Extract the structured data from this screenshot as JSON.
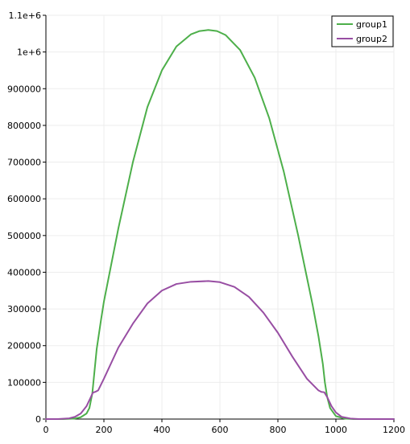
{
  "chart_data": {
    "type": "line",
    "title": "",
    "xlabel": "",
    "ylabel": "",
    "xlim": [
      0,
      1200
    ],
    "ylim": [
      0,
      1100000
    ],
    "xticks": [
      0,
      200,
      400,
      600,
      800,
      1000,
      1200
    ],
    "xtick_labels": [
      "0",
      "200",
      "400",
      "600",
      "800",
      "1000",
      "1200"
    ],
    "yticks": [
      0,
      100000,
      200000,
      300000,
      400000,
      500000,
      600000,
      700000,
      800000,
      900000,
      1000000,
      1100000
    ],
    "ytick_labels": [
      "0",
      "100000",
      "200000",
      "300000",
      "400000",
      "500000",
      "600000",
      "700000",
      "800000",
      "900000",
      "1e+6",
      "1.1e+6"
    ],
    "grid": true,
    "legend_position": "top-right",
    "series": [
      {
        "name": "group1",
        "color": "#4daf4a",
        "points": [
          [
            0,
            0
          ],
          [
            60,
            0
          ],
          [
            100,
            1500
          ],
          [
            120,
            5000
          ],
          [
            140,
            15000
          ],
          [
            150,
            30000
          ],
          [
            160,
            70000
          ],
          [
            165,
            110000
          ],
          [
            175,
            190000
          ],
          [
            190,
            270000
          ],
          [
            200,
            320000
          ],
          [
            250,
            520000
          ],
          [
            300,
            700000
          ],
          [
            350,
            850000
          ],
          [
            400,
            950000
          ],
          [
            450,
            1015000
          ],
          [
            500,
            1048000
          ],
          [
            530,
            1057000
          ],
          [
            560,
            1060000
          ],
          [
            590,
            1057000
          ],
          [
            620,
            1046000
          ],
          [
            670,
            1005000
          ],
          [
            720,
            930000
          ],
          [
            770,
            820000
          ],
          [
            820,
            675000
          ],
          [
            870,
            500000
          ],
          [
            920,
            310000
          ],
          [
            940,
            225000
          ],
          [
            955,
            150000
          ],
          [
            962,
            100000
          ],
          [
            970,
            60000
          ],
          [
            980,
            30000
          ],
          [
            1000,
            8000
          ],
          [
            1030,
            1500
          ],
          [
            1060,
            0
          ],
          [
            1200,
            0
          ]
        ]
      },
      {
        "name": "group2",
        "color": "#984ea3",
        "points": [
          [
            0,
            0
          ],
          [
            40,
            0
          ],
          [
            80,
            2000
          ],
          [
            100,
            6000
          ],
          [
            120,
            15000
          ],
          [
            140,
            35000
          ],
          [
            155,
            60000
          ],
          [
            162,
            72000
          ],
          [
            170,
            74000
          ],
          [
            180,
            78000
          ],
          [
            200,
            110000
          ],
          [
            250,
            195000
          ],
          [
            300,
            260000
          ],
          [
            350,
            315000
          ],
          [
            400,
            350000
          ],
          [
            450,
            368000
          ],
          [
            500,
            374000
          ],
          [
            560,
            376000
          ],
          [
            600,
            373000
          ],
          [
            650,
            360000
          ],
          [
            700,
            333000
          ],
          [
            750,
            290000
          ],
          [
            800,
            235000
          ],
          [
            850,
            170000
          ],
          [
            900,
            110000
          ],
          [
            940,
            78000
          ],
          [
            950,
            74000
          ],
          [
            960,
            73000
          ],
          [
            970,
            60000
          ],
          [
            985,
            35000
          ],
          [
            1000,
            18000
          ],
          [
            1020,
            6000
          ],
          [
            1050,
            1500
          ],
          [
            1080,
            0
          ],
          [
            1200,
            0
          ]
        ]
      }
    ]
  }
}
